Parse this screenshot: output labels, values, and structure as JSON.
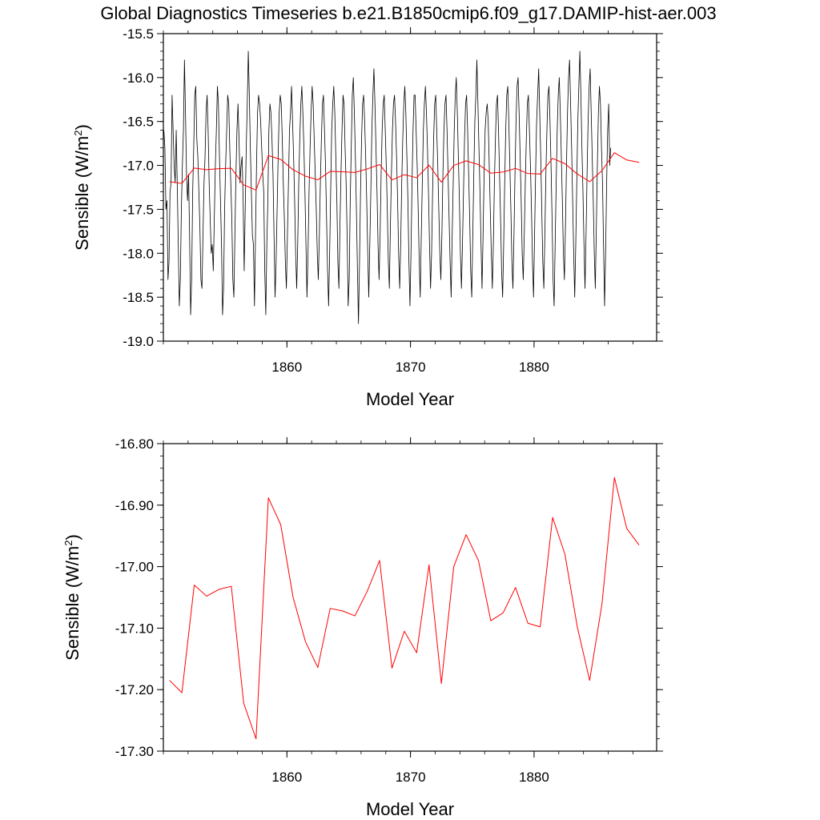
{
  "title": "Global Diagnostics Timeseries b.e21.B1850cmip6.f09_g17.DAMIP-hist-aer.003",
  "colors": {
    "monthly": "#000000",
    "annual": "#ff0000",
    "axis": "#000000"
  },
  "chart_data": [
    {
      "type": "line",
      "xlabel": "Model Year",
      "ylabel_main": "Sensible (W/m",
      "ylabel_sup": "2",
      "ylabel_end": ")",
      "xlim": [
        1850,
        1889.92
      ],
      "ylim": [
        -19.0,
        -15.5
      ],
      "xticks": [
        1860,
        1870,
        1880
      ],
      "xtick_labels": [
        "1860",
        "1870",
        "1880"
      ],
      "yticks": [
        -19.0,
        -18.5,
        -18.0,
        -17.5,
        -17.0,
        -16.5,
        -16.0,
        -15.5
      ],
      "ytick_labels": [
        "-19.0",
        "-18.5",
        "-18.0",
        "-17.5",
        "-17.0",
        "-16.5",
        "-16.0",
        "-15.5"
      ],
      "grid": false,
      "series": [
        {
          "color": "#000000",
          "x_start": 1850.04,
          "x_step": 0.0833333,
          "values": [
            -16.6,
            -16.8,
            -17.5,
            -17.4,
            -18.3,
            -18.1,
            -17.3,
            -17.2,
            -16.2,
            -16.6,
            -17.0,
            -17.2,
            -16.6,
            -17.2,
            -17.9,
            -18.6,
            -18.3,
            -17.5,
            -17.0,
            -16.6,
            -15.8,
            -16.4,
            -17.1,
            -17.4,
            -17.1,
            -17.8,
            -18.7,
            -18.3,
            -17.3,
            -16.8,
            -16.2,
            -16.1,
            -16.7,
            -16.9,
            -17.3,
            -17.7,
            -18.3,
            -18.4,
            -17.8,
            -17.2,
            -16.9,
            -16.4,
            -16.2,
            -16.6,
            -17.2,
            -17.6,
            -18.0,
            -17.9,
            -18.2,
            -17.6,
            -17.0,
            -16.6,
            -16.1,
            -16.3,
            -16.9,
            -17.4,
            -17.9,
            -18.7,
            -18.4,
            -17.5,
            -17.0,
            -16.6,
            -16.2,
            -16.3,
            -16.8,
            -17.2,
            -17.6,
            -18.3,
            -18.5,
            -17.8,
            -17.1,
            -16.6,
            -16.3,
            -16.7,
            -17.2,
            -17.0,
            -16.9,
            -17.4,
            -18.2,
            -17.5,
            -16.8,
            -16.3,
            -15.7,
            -16.2,
            -16.8,
            -17.3,
            -17.8,
            -17.9,
            -18.6,
            -17.8,
            -17.0,
            -16.4,
            -16.2,
            -16.3,
            -16.5,
            -16.8,
            -17.1,
            -17.3,
            -18.2,
            -18.7,
            -17.9,
            -17.4,
            -16.6,
            -16.3,
            -16.4,
            -16.7,
            -17.1,
            -17.8,
            -18.5,
            -18.1,
            -17.5,
            -16.9,
            -16.4,
            -16.2,
            -16.3,
            -16.7,
            -17.2,
            -17.6,
            -18.1,
            -18.4,
            -17.8,
            -17.2,
            -16.6,
            -16.4,
            -16.1,
            -16.5,
            -16.9,
            -17.4,
            -18.0,
            -18.4,
            -17.9,
            -17.2,
            -16.7,
            -16.3,
            -16.1,
            -16.4,
            -16.8,
            -17.3,
            -17.9,
            -18.5,
            -18.0,
            -17.3,
            -16.8,
            -16.4,
            -16.1,
            -16.3,
            -16.7,
            -17.1,
            -17.5,
            -18.0,
            -18.3,
            -17.8,
            -17.2,
            -16.7,
            -16.3,
            -16.2,
            -16.6,
            -17.0,
            -17.6,
            -18.2,
            -18.6,
            -18.0,
            -17.3,
            -16.6,
            -16.3,
            -16.1,
            -16.4,
            -16.9,
            -17.4,
            -18.1,
            -18.4,
            -17.7,
            -17.1,
            -16.6,
            -16.2,
            -16.3,
            -16.8,
            -17.2,
            -17.8,
            -18.6,
            -18.3,
            -17.4,
            -16.8,
            -16.2,
            -16.0,
            -16.4,
            -16.9,
            -17.5,
            -18.2,
            -18.8,
            -18.1,
            -17.3,
            -16.7,
            -16.3,
            -16.2,
            -16.5,
            -16.9,
            -17.4,
            -18.0,
            -18.5,
            -17.9,
            -17.3,
            -16.6,
            -16.2,
            -15.9,
            -16.3,
            -16.8,
            -17.3,
            -17.9,
            -18.3,
            -17.8,
            -17.1,
            -16.6,
            -16.3,
            -16.2,
            -16.6,
            -17.0,
            -17.5,
            -18.1,
            -18.4,
            -17.7,
            -17.1,
            -16.6,
            -16.3,
            -16.2,
            -16.5,
            -16.9,
            -17.4,
            -18.0,
            -18.4,
            -17.9,
            -17.2,
            -16.7,
            -16.3,
            -16.1,
            -16.4,
            -16.9,
            -17.4,
            -18.1,
            -18.6,
            -18.0,
            -17.2,
            -16.6,
            -16.2,
            -16.2,
            -16.6,
            -17.0,
            -17.5,
            -18.1,
            -18.5,
            -17.8,
            -17.2,
            -16.6,
            -16.3,
            -16.1,
            -16.4,
            -16.8,
            -17.3,
            -17.9,
            -18.4,
            -18.0,
            -17.3,
            -16.7,
            -16.3,
            -16.2,
            -16.6,
            -17.0,
            -17.5,
            -18.0,
            -18.3,
            -17.8,
            -17.1,
            -16.6,
            -16.3,
            -16.2,
            -16.6,
            -17.1,
            -17.6,
            -18.1,
            -18.5,
            -17.8,
            -17.2,
            -16.6,
            -16.2,
            -16.0,
            -16.4,
            -16.9,
            -17.4,
            -18.0,
            -18.4,
            -17.9,
            -17.3,
            -16.7,
            -16.3,
            -16.2,
            -16.6,
            -17.1,
            -17.6,
            -18.2,
            -18.5,
            -17.8,
            -17.1,
            -16.5,
            -16.2,
            -15.8,
            -16.3,
            -16.8,
            -17.3,
            -17.9,
            -18.4,
            -17.8,
            -17.1,
            -16.6,
            -16.4,
            -16.3,
            -16.5,
            -17.0,
            -17.5,
            -18.0,
            -18.4,
            -17.9,
            -17.2,
            -16.7,
            -16.3,
            -16.2,
            -16.6,
            -17.1,
            -17.6,
            -18.2,
            -18.5,
            -17.9,
            -17.2,
            -16.6,
            -16.2,
            -16.1,
            -16.5,
            -17.0,
            -17.5,
            -18.1,
            -18.4,
            -17.8,
            -17.1,
            -16.5,
            -16.1,
            -16.0,
            -16.4,
            -16.9,
            -17.4,
            -18.0,
            -18.3,
            -17.8,
            -17.2,
            -16.7,
            -16.3,
            -16.2,
            -16.6,
            -17.0,
            -17.5,
            -18.1,
            -18.5,
            -17.8,
            -17.1,
            -16.5,
            -16.2,
            -15.9,
            -16.4,
            -16.9,
            -17.5,
            -18.1,
            -18.4,
            -17.8,
            -17.1,
            -16.6,
            -16.2,
            -16.1,
            -16.5,
            -17.0,
            -17.6,
            -18.3,
            -18.6,
            -17.9,
            -17.2,
            -16.6,
            -16.2,
            -16.0,
            -16.4,
            -16.9,
            -17.4,
            -18.0,
            -18.3,
            -17.7,
            -17.0,
            -16.4,
            -16.0,
            -15.8,
            -16.3,
            -16.8,
            -17.4,
            -18.0,
            -18.5,
            -17.9,
            -17.2,
            -16.5,
            -16.1,
            -15.7,
            -16.2,
            -16.8,
            -17.3,
            -17.9,
            -18.4,
            -17.8,
            -17.1,
            -16.5,
            -16.1,
            -15.9,
            -16.4,
            -16.9,
            -17.4,
            -18.0,
            -18.4,
            -17.7,
            -17.0,
            -16.4,
            -16.1,
            -16.3,
            -16.8,
            -17.2,
            -17.9,
            -18.6,
            -18.0,
            -17.2,
            -16.6,
            -16.3,
            -17.0,
            -16.8
          ]
        },
        {
          "color": "#ff0000",
          "x": [
            1850.5,
            1851.5,
            1852.5,
            1853.5,
            1854.5,
            1855.5,
            1856.5,
            1857.5,
            1858.5,
            1859.5,
            1860.5,
            1861.5,
            1862.5,
            1863.5,
            1864.5,
            1865.5,
            1866.5,
            1867.5,
            1868.5,
            1869.5,
            1870.5,
            1871.5,
            1872.5,
            1873.5,
            1874.5,
            1875.5,
            1876.5,
            1877.5,
            1878.5,
            1879.5,
            1880.5,
            1881.5,
            1882.5,
            1883.5,
            1884.5,
            1885.5,
            1886.5,
            1887.5,
            1888.5
          ],
          "values": [
            -17.185,
            -17.205,
            -17.03,
            -17.048,
            -17.037,
            -17.032,
            -17.222,
            -17.28,
            -16.888,
            -16.932,
            -17.05,
            -17.122,
            -17.164,
            -17.068,
            -17.072,
            -17.08,
            -17.04,
            -16.99,
            -17.165,
            -17.105,
            -17.14,
            -16.997,
            -17.19,
            -17.0,
            -16.948,
            -16.99,
            -17.088,
            -17.075,
            -17.034,
            -17.092,
            -17.098,
            -16.92,
            -16.98,
            -17.098,
            -17.185,
            -17.06,
            -16.855,
            -16.938,
            -16.965
          ]
        }
      ]
    },
    {
      "type": "line",
      "xlabel": "Model Year",
      "ylabel_main": "Sensible (W/m",
      "ylabel_sup": "2",
      "ylabel_end": ")",
      "xlim": [
        1850,
        1889.92
      ],
      "ylim": [
        -17.3,
        -16.8
      ],
      "xticks": [
        1860,
        1870,
        1880
      ],
      "xtick_labels": [
        "1860",
        "1870",
        "1880"
      ],
      "yticks": [
        -17.3,
        -17.2,
        -17.1,
        -17.0,
        -16.9,
        -16.8
      ],
      "ytick_labels": [
        "-17.30",
        "-17.20",
        "-17.10",
        "-17.00",
        "-16.90",
        "-16.80"
      ],
      "grid": false,
      "series": [
        {
          "color": "#ff0000",
          "x": [
            1850.5,
            1851.5,
            1852.5,
            1853.5,
            1854.5,
            1855.5,
            1856.5,
            1857.5,
            1858.5,
            1859.5,
            1860.5,
            1861.5,
            1862.5,
            1863.5,
            1864.5,
            1865.5,
            1866.5,
            1867.5,
            1868.5,
            1869.5,
            1870.5,
            1871.5,
            1872.5,
            1873.5,
            1874.5,
            1875.5,
            1876.5,
            1877.5,
            1878.5,
            1879.5,
            1880.5,
            1881.5,
            1882.5,
            1883.5,
            1884.5,
            1885.5,
            1886.5,
            1887.5,
            1888.5
          ],
          "values": [
            -17.185,
            -17.205,
            -17.03,
            -17.048,
            -17.037,
            -17.032,
            -17.222,
            -17.28,
            -16.888,
            -16.932,
            -17.05,
            -17.122,
            -17.164,
            -17.068,
            -17.072,
            -17.08,
            -17.04,
            -16.99,
            -17.165,
            -17.105,
            -17.14,
            -16.997,
            -17.19,
            -17.0,
            -16.948,
            -16.99,
            -17.088,
            -17.075,
            -17.034,
            -17.092,
            -17.098,
            -16.92,
            -16.98,
            -17.098,
            -17.185,
            -17.06,
            -16.855,
            -16.938,
            -16.965
          ]
        }
      ]
    }
  ]
}
